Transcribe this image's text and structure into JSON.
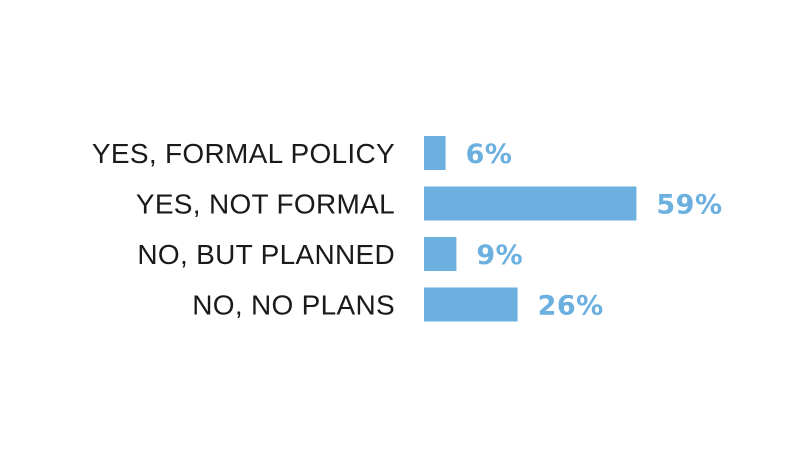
{
  "chart_data": {
    "type": "bar",
    "orientation": "horizontal",
    "categories": [
      "YES, FORMAL POLICY",
      "YES, NOT FORMAL",
      "NO, BUT PLANNED",
      "NO, NO PLANS"
    ],
    "values": [
      6,
      59,
      9,
      26
    ],
    "value_labels": [
      "6%",
      "59%",
      "9%",
      "26%"
    ],
    "unit": "%",
    "xlim": [
      0,
      100
    ],
    "grid": false,
    "legend": "none",
    "title": "",
    "xlabel": "",
    "ylabel": ""
  },
  "colors": {
    "bar": "#6cb0e0",
    "value_text": "#6cb0e0",
    "label_text": "#1a1a1a",
    "background": "#ffffff"
  }
}
